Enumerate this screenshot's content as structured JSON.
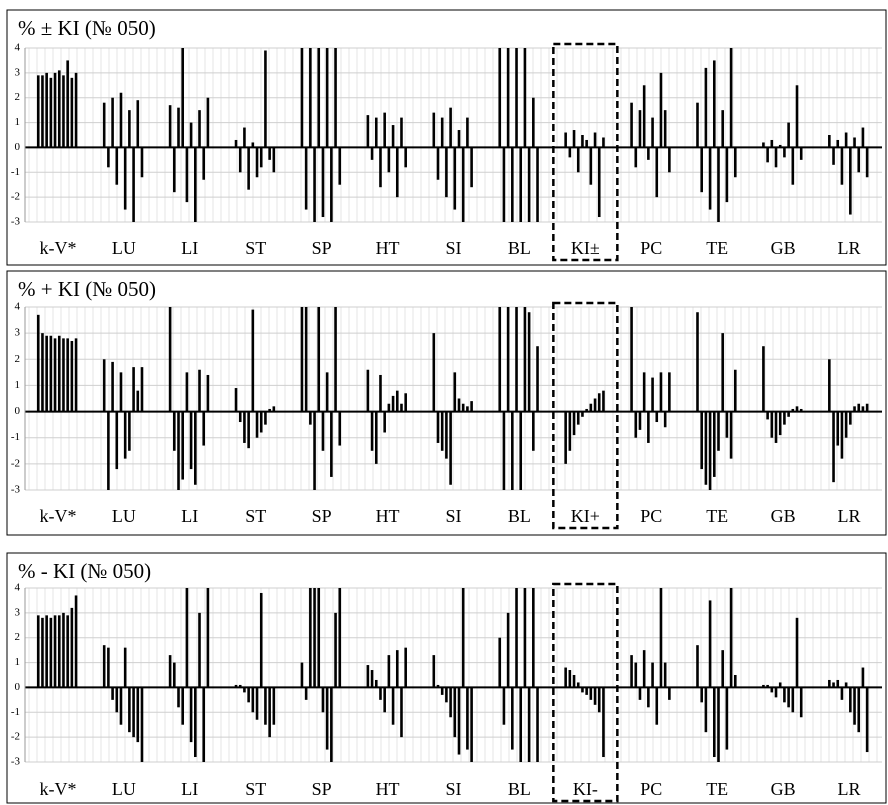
{
  "chart_data": [
    {
      "type": "bar",
      "title": "% ± KI (№ 050)",
      "ylim": [
        -3,
        4
      ],
      "yticks": [
        -3,
        -2,
        -1,
        0,
        1,
        2,
        3,
        4
      ],
      "grid": true,
      "color": "#000000",
      "categories": [
        "k-V*",
        "LU",
        "LI",
        "ST",
        "SP",
        "HT",
        "SI",
        "BL",
        "KI±",
        "PC",
        "TE",
        "GB",
        "LR"
      ],
      "values": [
        [
          2.9,
          2.9,
          3.0,
          2.8,
          3.0,
          3.1,
          2.9,
          3.5,
          2.8,
          3.0
        ],
        [
          1.8,
          -0.8,
          2.0,
          -1.5,
          2.2,
          -2.5,
          1.5,
          -3.0,
          1.9,
          -1.2
        ],
        [
          1.7,
          -1.8,
          1.6,
          4.0,
          -2.2,
          1.0,
          -3.0,
          1.5,
          -1.3,
          2.0
        ],
        [
          0.3,
          -1.0,
          0.8,
          -1.7,
          0.2,
          -1.2,
          -0.8,
          3.9,
          -0.5,
          -1.0
        ],
        [
          4,
          -2.5,
          4,
          -3,
          4,
          -2.8,
          4,
          -3,
          4,
          -1.5
        ],
        [
          1.3,
          -0.5,
          1.2,
          -1.6,
          1.4,
          -1.0,
          0.9,
          -2.0,
          1.2,
          -0.8
        ],
        [
          1.4,
          -1.3,
          1.2,
          -2.0,
          1.6,
          -2.5,
          0.7,
          -3.0,
          1.2,
          -1.6
        ],
        [
          4,
          -3,
          4,
          -3,
          4,
          -3,
          4,
          -3,
          2.0,
          -3
        ],
        [
          0.6,
          -0.4,
          0.7,
          -1.0,
          0.5,
          0.3,
          -1.5,
          0.6,
          -2.8,
          0.4
        ],
        [
          1.8,
          -0.8,
          1.5,
          2.5,
          -0.5,
          1.2,
          -2.0,
          3.0,
          1.5,
          -1.0
        ],
        [
          1.8,
          -1.8,
          3.2,
          -2.5,
          3.5,
          -3.0,
          1.5,
          -2.2,
          4.0,
          -1.2
        ],
        [
          0.2,
          -0.6,
          0.3,
          -0.8,
          0.1,
          -0.4,
          1.0,
          -1.5,
          2.5,
          -0.5
        ],
        [
          0.5,
          -0.7,
          0.3,
          -1.5,
          0.6,
          -2.7,
          0.4,
          -1.0,
          0.8,
          -1.2
        ]
      ]
    },
    {
      "type": "bar",
      "title": "% + KI (№ 050)",
      "ylim": [
        -3,
        4
      ],
      "yticks": [
        -3,
        -2,
        -1,
        0,
        1,
        2,
        3,
        4
      ],
      "grid": true,
      "color": "#000000",
      "categories": [
        "k-V*",
        "LU",
        "LI",
        "ST",
        "SP",
        "HT",
        "SI",
        "BL",
        "KI+",
        "PC",
        "TE",
        "GB",
        "LR"
      ],
      "values": [
        [
          3.7,
          3.0,
          2.9,
          2.9,
          2.8,
          2.9,
          2.8,
          2.8,
          2.7,
          2.8
        ],
        [
          2.0,
          -3.0,
          1.9,
          -2.2,
          1.5,
          -1.8,
          -1.5,
          1.7,
          0.8,
          1.7
        ],
        [
          4.0,
          -1.5,
          -3.0,
          -2.6,
          1.5,
          -2.2,
          -2.8,
          1.6,
          -1.3,
          1.4
        ],
        [
          0.9,
          -0.4,
          -1.2,
          -1.4,
          3.9,
          -1.0,
          -0.8,
          -0.5,
          0.1,
          0.2
        ],
        [
          4,
          4,
          -0.5,
          -3,
          4,
          -1.5,
          1.5,
          -2.5,
          4,
          -1.3
        ],
        [
          1.6,
          -1.5,
          -2.0,
          1.4,
          -0.8,
          0.3,
          0.6,
          0.8,
          0.3,
          0.7
        ],
        [
          3.0,
          -1.2,
          -1.5,
          -1.8,
          -2.8,
          1.5,
          0.5,
          0.3,
          0.2,
          0.4
        ],
        [
          4,
          -3,
          4,
          -3,
          4,
          -3,
          4,
          3.8,
          -1.5,
          2.5
        ],
        [
          -2.0,
          -1.5,
          -0.9,
          -0.5,
          -0.2,
          0.1,
          0.3,
          0.5,
          0.7,
          0.8
        ],
        [
          4.0,
          -1.0,
          -0.7,
          1.5,
          -1.2,
          1.3,
          -0.4,
          1.5,
          -0.6,
          1.5
        ],
        [
          3.8,
          -2.2,
          -2.8,
          -3.0,
          -2.5,
          -1.5,
          3.0,
          -1.0,
          -1.8,
          1.6
        ],
        [
          2.5,
          -0.3,
          -1.0,
          -1.2,
          -0.9,
          -0.5,
          -0.2,
          0.1,
          0.2,
          0.1
        ],
        [
          2.0,
          -2.7,
          -1.3,
          -1.8,
          -1.0,
          -0.5,
          0.2,
          0.3,
          0.2,
          0.3
        ]
      ]
    },
    {
      "type": "bar",
      "title": "% - KI (№ 050)",
      "ylim": [
        -3,
        4
      ],
      "yticks": [
        -3,
        -2,
        -1,
        0,
        1,
        2,
        3,
        4
      ],
      "grid": true,
      "color": "#000000",
      "categories": [
        "k-V*",
        "LU",
        "LI",
        "ST",
        "SP",
        "HT",
        "SI",
        "BL",
        "KI-",
        "PC",
        "TE",
        "GB",
        "LR"
      ],
      "values": [
        [
          2.9,
          2.8,
          2.9,
          2.8,
          2.9,
          2.9,
          3.0,
          2.9,
          3.2,
          3.7
        ],
        [
          1.7,
          1.6,
          -0.5,
          -1.0,
          -1.5,
          1.6,
          -1.8,
          -2.0,
          -2.2,
          -3.0
        ],
        [
          1.3,
          1.0,
          -0.8,
          -1.5,
          4.0,
          -2.2,
          -2.8,
          3.0,
          -3.0,
          4.0
        ],
        [
          0.1,
          0.1,
          -0.2,
          -0.6,
          -1.0,
          -1.3,
          3.8,
          -1.5,
          -2.0,
          -1.5
        ],
        [
          1.0,
          -0.5,
          4,
          4,
          4,
          -1.0,
          -2.5,
          -3.0,
          3.0,
          4
        ],
        [
          0.9,
          0.7,
          0.3,
          -0.5,
          -1.0,
          1.3,
          -1.5,
          1.5,
          -2.0,
          1.6
        ],
        [
          1.3,
          0.1,
          -0.3,
          -0.6,
          -1.2,
          -2.0,
          -2.7,
          4.0,
          -2.5,
          -3.0
        ],
        [
          2.0,
          -1.5,
          3.0,
          -2.5,
          4,
          -3,
          4,
          -3,
          4,
          -3
        ],
        [
          0.8,
          0.7,
          0.5,
          0.2,
          -0.2,
          -0.3,
          -0.5,
          -0.7,
          -1.0,
          -2.8
        ],
        [
          1.3,
          1.0,
          -0.5,
          1.5,
          -0.8,
          1.0,
          -1.5,
          4.0,
          1.0,
          -0.5
        ],
        [
          1.7,
          -0.6,
          -1.8,
          3.5,
          -2.8,
          -3.0,
          1.5,
          -2.5,
          4.0,
          0.5
        ],
        [
          0.1,
          0.1,
          -0.2,
          -0.4,
          0.2,
          -0.6,
          -0.8,
          -1.0,
          2.8,
          -1.2
        ],
        [
          0.3,
          0.2,
          0.3,
          -0.5,
          0.2,
          -1.0,
          -1.5,
          -1.8,
          0.8,
          -2.6
        ]
      ]
    }
  ]
}
